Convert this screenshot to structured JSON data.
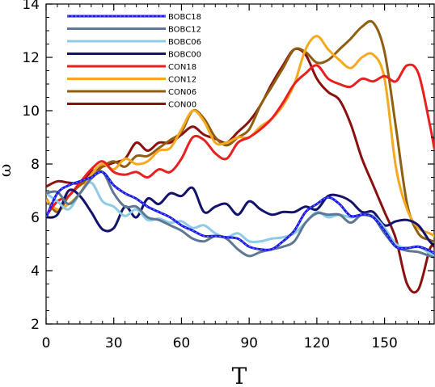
{
  "chart_data": {
    "type": "line",
    "xlabel": "T",
    "ylabel": "ω",
    "xlim": [
      0,
      172
    ],
    "ylim": [
      2,
      14
    ],
    "xticks": [
      0,
      30,
      60,
      90,
      120,
      150
    ],
    "xtick_labels": [
      "0",
      "30",
      "60",
      "90",
      "120",
      "150"
    ],
    "yticks": [
      2,
      4,
      6,
      8,
      10,
      12,
      14
    ],
    "ytick_labels": [
      "2",
      "4",
      "6",
      "8",
      "10",
      "12",
      "14"
    ],
    "grid": false,
    "legend_position": "top-left",
    "x": [
      0,
      5,
      10,
      15,
      20,
      25,
      30,
      35,
      40,
      45,
      50,
      55,
      60,
      65,
      70,
      75,
      80,
      85,
      90,
      95,
      100,
      105,
      110,
      115,
      120,
      125,
      130,
      135,
      140,
      145,
      150,
      155,
      160,
      165,
      170,
      172
    ],
    "series": [
      {
        "name": "BOBC18",
        "color": "#1a1ae0",
        "dashed": true,
        "values": [
          6.0,
          6.9,
          7.2,
          7.35,
          7.5,
          7.7,
          7.2,
          6.9,
          6.7,
          6.4,
          6.2,
          6.0,
          5.7,
          5.5,
          5.3,
          5.3,
          5.25,
          5.2,
          4.9,
          4.8,
          4.8,
          5.1,
          5.5,
          6.2,
          6.5,
          6.75,
          6.5,
          6.05,
          6.1,
          6.0,
          5.5,
          4.9,
          4.85,
          4.9,
          4.75,
          4.65
        ]
      },
      {
        "name": "BOBC12",
        "color": "#5e7894",
        "dashed": false,
        "values": [
          6.9,
          6.95,
          6.5,
          6.9,
          7.45,
          7.7,
          6.9,
          6.4,
          6.4,
          6.0,
          5.9,
          5.7,
          5.5,
          5.2,
          5.1,
          5.3,
          5.2,
          4.8,
          4.55,
          4.7,
          4.8,
          4.9,
          5.1,
          5.8,
          6.15,
          6.1,
          6.1,
          5.8,
          6.1,
          6.0,
          5.4,
          4.9,
          4.75,
          4.7,
          4.55,
          4.5
        ]
      },
      {
        "name": "BOBC06",
        "color": "#8ecbe4",
        "dashed": false,
        "values": [
          6.9,
          6.6,
          6.3,
          6.9,
          7.3,
          6.6,
          6.4,
          6.05,
          6.3,
          5.9,
          5.95,
          5.8,
          5.85,
          5.6,
          5.7,
          5.4,
          5.25,
          5.4,
          5.1,
          5.1,
          5.2,
          5.25,
          5.4,
          5.8,
          6.2,
          6.0,
          6.1,
          6.0,
          6.1,
          6.05,
          5.6,
          5.0,
          4.85,
          4.9,
          4.65,
          4.55
        ]
      },
      {
        "name": "BOBC00",
        "color": "#13136b",
        "dashed": false,
        "values": [
          6.0,
          6.1,
          7.0,
          6.8,
          6.2,
          5.55,
          5.6,
          6.4,
          6.0,
          6.7,
          6.5,
          6.9,
          6.8,
          7.1,
          6.2,
          6.4,
          6.5,
          6.1,
          6.6,
          6.3,
          6.1,
          6.2,
          6.2,
          6.4,
          6.3,
          6.8,
          6.8,
          6.6,
          6.2,
          6.2,
          5.7,
          5.85,
          5.9,
          5.7,
          5.1,
          4.95
        ]
      },
      {
        "name": "CON18",
        "color": "#e82020",
        "dashed": false,
        "values": [
          6.05,
          6.6,
          6.8,
          7.3,
          7.8,
          8.1,
          7.7,
          7.6,
          7.7,
          7.5,
          7.8,
          7.7,
          8.2,
          9.0,
          8.9,
          8.4,
          8.2,
          8.8,
          9.0,
          9.3,
          9.7,
          10.3,
          11.0,
          11.4,
          11.7,
          11.2,
          11.0,
          10.9,
          11.2,
          11.1,
          11.3,
          11.1,
          11.7,
          11.4,
          9.5,
          8.6
        ]
      },
      {
        "name": "CON12",
        "color": "#f5a820",
        "dashed": false,
        "values": [
          6.65,
          6.3,
          6.5,
          6.9,
          7.6,
          8.0,
          7.8,
          8.2,
          8.0,
          8.1,
          8.5,
          8.6,
          9.3,
          10.0,
          9.6,
          8.8,
          8.8,
          9.0,
          9.0,
          9.4,
          9.7,
          10.2,
          11.0,
          12.3,
          12.8,
          12.3,
          11.9,
          11.6,
          12.0,
          12.1,
          11.2,
          7.9,
          6.3,
          5.6,
          5.4,
          5.3
        ]
      },
      {
        "name": "CON06",
        "color": "#8f5e10",
        "dashed": false,
        "values": [
          6.7,
          6.2,
          6.8,
          7.2,
          7.5,
          7.9,
          8.1,
          7.9,
          8.3,
          8.3,
          8.6,
          8.9,
          9.2,
          10.0,
          9.7,
          9.0,
          8.7,
          9.0,
          9.3,
          10.2,
          10.9,
          11.6,
          12.3,
          12.2,
          11.8,
          11.9,
          12.3,
          12.7,
          13.15,
          13.3,
          12.2,
          9.4,
          6.5,
          5.4,
          5.15,
          5.1
        ]
      },
      {
        "name": "CON00",
        "color": "#8b1010",
        "dashed": false,
        "values": [
          7.15,
          7.35,
          7.3,
          7.3,
          7.7,
          7.9,
          8.05,
          8.2,
          8.8,
          8.5,
          8.8,
          8.8,
          9.1,
          9.4,
          9.1,
          8.95,
          8.8,
          9.2,
          9.6,
          10.2,
          11.0,
          11.7,
          12.3,
          12.1,
          11.2,
          10.7,
          10.4,
          9.5,
          8.2,
          7.2,
          6.2,
          5.2,
          3.5,
          3.3,
          4.8,
          4.9
        ]
      }
    ]
  }
}
